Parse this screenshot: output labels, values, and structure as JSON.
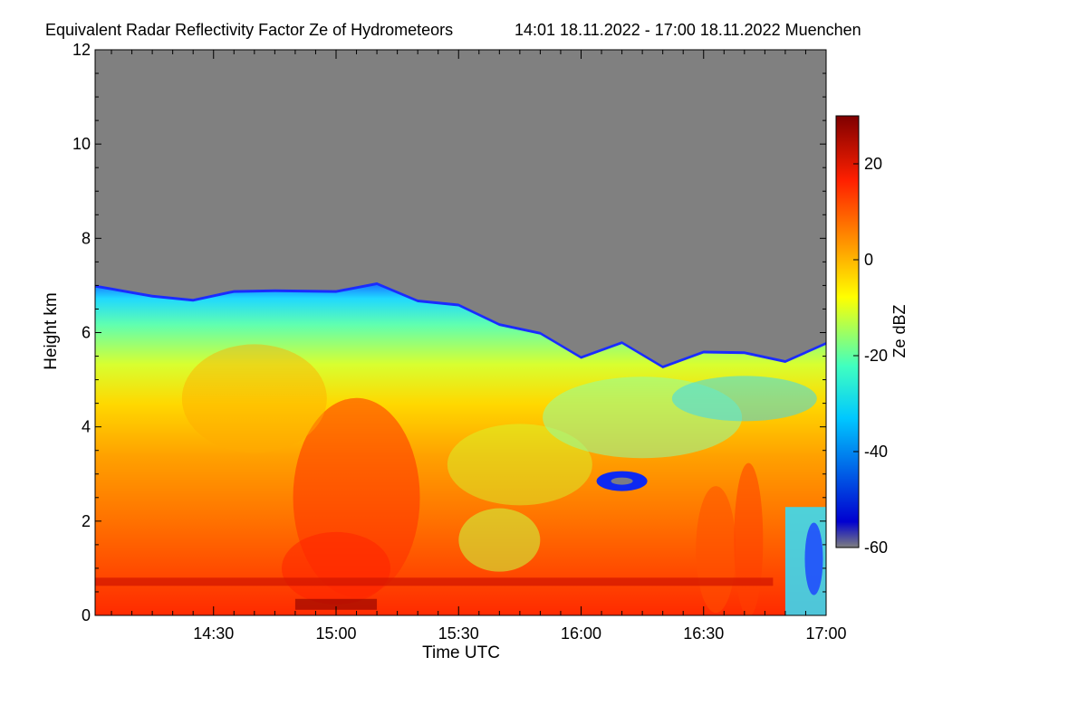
{
  "chart_data": {
    "type": "heatmap",
    "title": "Equivalent Radar Reflectivity Factor Ze of Hydrometeors",
    "period": "14:01 18.11.2022 - 17:00 18.11.2022 Muenchen",
    "xlabel": "Time UTC",
    "ylabel": "Height km",
    "x_range": [
      "14:01",
      "17:00"
    ],
    "x_ticks": [
      "14:30",
      "15:00",
      "15:30",
      "16:00",
      "16:30",
      "17:00"
    ],
    "ylim": [
      0,
      12
    ],
    "y_ticks": [
      "0",
      "2",
      "4",
      "6",
      "8",
      "10",
      "12"
    ],
    "colorbar": {
      "label": "Ze dBZ",
      "range": [
        -60,
        30
      ],
      "ticks": [
        "20",
        "0",
        "-20",
        "-40",
        "-60"
      ],
      "colormap": [
        "#7f7f7f",
        "#0000d0",
        "#00c8ff",
        "#40ffc0",
        "#ffff00",
        "#ff9900",
        "#ff2000",
        "#7f0000"
      ]
    },
    "no_signal_color": "#808080",
    "echo_top_km": [
      {
        "time": "14:01",
        "height": 6.9
      },
      {
        "time": "14:15",
        "height": 6.8
      },
      {
        "time": "14:25",
        "height": 6.6
      },
      {
        "time": "14:35",
        "height": 6.9
      },
      {
        "time": "14:45",
        "height": 6.8
      },
      {
        "time": "15:00",
        "height": 6.9
      },
      {
        "time": "15:10",
        "height": 6.95
      },
      {
        "time": "15:20",
        "height": 6.7
      },
      {
        "time": "15:30",
        "height": 6.5
      },
      {
        "time": "15:40",
        "height": 6.2
      },
      {
        "time": "15:50",
        "height": 5.9
      },
      {
        "time": "16:00",
        "height": 5.5
      },
      {
        "time": "16:10",
        "height": 5.7
      },
      {
        "time": "16:20",
        "height": 5.3
      },
      {
        "time": "16:30",
        "height": 5.5
      },
      {
        "time": "16:40",
        "height": 5.6
      },
      {
        "time": "16:50",
        "height": 5.3
      },
      {
        "time": "17:00",
        "height": 5.8
      }
    ]
  }
}
